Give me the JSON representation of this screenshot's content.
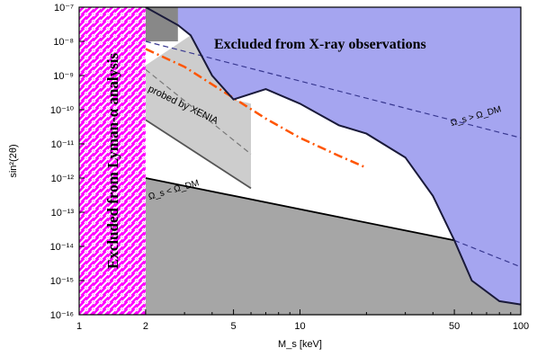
{
  "chart_data": {
    "type": "area",
    "xlabel": "M_s [keV]",
    "ylabel": "sin²(2θ)",
    "xscale": "log",
    "yscale": "log",
    "xlim": [
      1,
      100
    ],
    "ylim": [
      1e-16,
      1e-07
    ],
    "x_ticks": [
      {
        "v": 1,
        "label": "1"
      },
      {
        "v": 2,
        "label": "2"
      },
      {
        "v": 5,
        "label": "5"
      },
      {
        "v": 10,
        "label": "10"
      },
      {
        "v": 50,
        "label": "50"
      },
      {
        "v": 100,
        "label": "100"
      }
    ],
    "y_ticks": [
      {
        "v": 1e-07,
        "label": "10⁻⁷"
      },
      {
        "v": 1e-08,
        "label": "10⁻⁸"
      },
      {
        "v": 1e-09,
        "label": "10⁻⁹"
      },
      {
        "v": 1e-10,
        "label": "10⁻¹⁰"
      },
      {
        "v": 1e-11,
        "label": "10⁻¹¹"
      },
      {
        "v": 1e-12,
        "label": "10⁻¹²"
      },
      {
        "v": 1e-13,
        "label": "10⁻¹³"
      },
      {
        "v": 1e-14,
        "label": "10⁻¹⁴"
      },
      {
        "v": 1e-15,
        "label": "10⁻¹⁵"
      },
      {
        "v": 1e-16,
        "label": "10⁻¹⁶"
      }
    ],
    "regions": [
      {
        "name": "X-ray excluded",
        "color": "#a5a5f0",
        "boundary": [
          [
            2,
            1e-07
          ],
          [
            2.8,
            3e-08
          ],
          [
            3.2,
            1.5e-08
          ],
          [
            4,
            1e-09
          ],
          [
            5,
            2e-10
          ],
          [
            7,
            4e-10
          ],
          [
            10,
            1.5e-10
          ],
          [
            15,
            3.5e-11
          ],
          [
            20,
            2e-11
          ],
          [
            30,
            4e-12
          ],
          [
            40,
            3e-13
          ],
          [
            50,
            1.5e-14
          ],
          [
            60,
            1e-15
          ],
          [
            80,
            2.5e-16
          ],
          [
            100,
            2e-16
          ]
        ]
      },
      {
        "name": "Omega_s < Omega_DM",
        "color": "#a6a6a6",
        "boundary": [
          [
            2,
            1e-12
          ],
          [
            50,
            1.5e-14
          ],
          [
            100,
            2e-16
          ]
        ]
      },
      {
        "name": "probed by XENIA",
        "color": "#c8c8c8",
        "x_range": [
          2,
          6
        ],
        "boundary_top": [
          [
            2,
            2e-09
          ],
          [
            3.2,
            1.5e-08
          ],
          [
            4,
            1e-09
          ],
          [
            5,
            2e-10
          ],
          [
            6,
            1.5e-10
          ]
        ],
        "boundary_bottom": [
          [
            2,
            5e-11
          ],
          [
            6,
            5e-13
          ]
        ]
      },
      {
        "name": "Lyman-alpha excluded",
        "color": "#ff00ff",
        "x_range": [
          1,
          2
        ]
      }
    ],
    "series": [
      {
        "style": "dash-dot",
        "color": "#ff5500",
        "x": [
          2,
          3,
          5,
          7,
          10,
          15,
          20
        ],
        "y": [
          6e-09,
          1.8e-09,
          2.2e-10,
          5.5e-11,
          1.5e-11,
          4.5e-12,
          2e-12
        ]
      },
      {
        "style": "dashed",
        "color": "#383890",
        "x": [
          2,
          100
        ],
        "y": [
          1e-08,
          1.5e-11
        ]
      },
      {
        "style": "dashed",
        "color": "#383890",
        "x": [
          50,
          100
        ],
        "y": [
          1.5e-14,
          2.5e-15
        ]
      },
      {
        "style": "dashed",
        "color": "#777777",
        "x": [
          2,
          6
        ],
        "y": [
          1.5e-09,
          5e-12
        ]
      },
      {
        "style": "solid",
        "color": "#555555",
        "x": [
          2,
          6
        ],
        "y": [
          5e-11,
          5e-13
        ]
      },
      {
        "style": "solid",
        "color": "#000000",
        "x": [
          2,
          50
        ],
        "y": [
          1e-12,
          1.5e-14
        ]
      }
    ],
    "annotations": {
      "xray": "Excluded from X-ray observations",
      "lyman": "Excluded from Lyman-α analysis",
      "xenia": "probed by XENIA",
      "gt": "Ω_s > Ω_DM",
      "lt": "Ω_s < Ω_DM"
    }
  }
}
